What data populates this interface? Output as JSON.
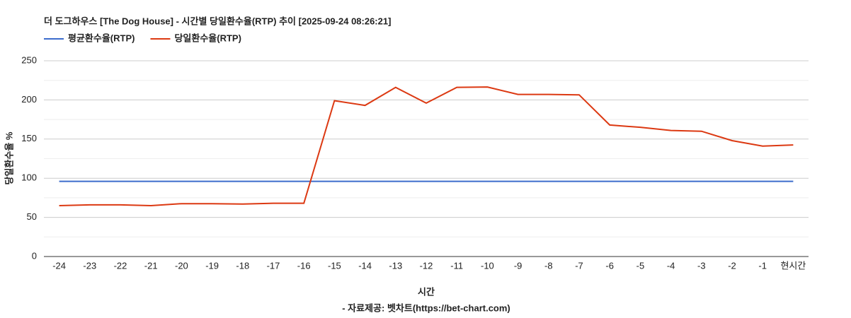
{
  "chart_data": {
    "type": "line",
    "title": "더 도그하우스 [The Dog House] - 시간별 당일환수율(RTP) 추이 [2025-09-24 08:26:21]",
    "x_label": "시간",
    "y_label": "당일환수율 %",
    "source": "- 자료제공: 벳차트(https://bet-chart.com)",
    "categories": [
      "-24",
      "-23",
      "-22",
      "-21",
      "-20",
      "-19",
      "-18",
      "-17",
      "-16",
      "-15",
      "-14",
      "-13",
      "-12",
      "-11",
      "-10",
      "-9",
      "-8",
      "-7",
      "-6",
      "-5",
      "-4",
      "-3",
      "-2",
      "-1",
      "현시간"
    ],
    "series": [
      {
        "name": "평균환수율(RTP)",
        "color": "#3c6ccc",
        "values": [
          96,
          96,
          96,
          96,
          96,
          96,
          96,
          96,
          96,
          96,
          96,
          96,
          96,
          96,
          96,
          96,
          96,
          96,
          96,
          96,
          96,
          96,
          96,
          96,
          96
        ]
      },
      {
        "name": "당일환수율(RTP)",
        "color": "#dc3912",
        "values": [
          65,
          66,
          66,
          65,
          67.5,
          67.5,
          67,
          68,
          68,
          199,
          193,
          216,
          196,
          216,
          216.5,
          207,
          207,
          206.5,
          168,
          165,
          161,
          160,
          148,
          141,
          142.5
        ]
      }
    ],
    "ylim": [
      0,
      250
    ],
    "yticks": [
      0,
      50,
      100,
      150,
      200,
      250
    ],
    "minor_yticks": [
      25,
      75,
      125,
      175,
      225
    ],
    "grid": true,
    "legend": "top-left"
  }
}
